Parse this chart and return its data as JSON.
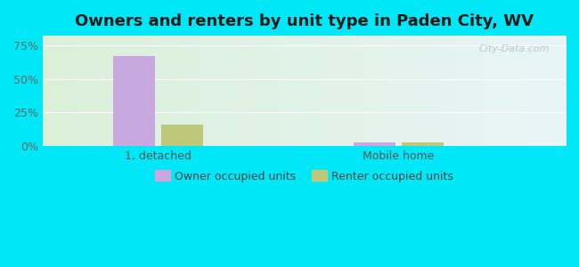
{
  "title": "Owners and renters by unit type in Paden City, WV",
  "categories": [
    "1, detached",
    "Mobile home"
  ],
  "owner_values": [
    67.0,
    2.8
  ],
  "renter_values": [
    16.0,
    2.8
  ],
  "owner_color": "#c9a8e0",
  "renter_color": "#bec87a",
  "yticks": [
    0,
    25,
    50,
    75
  ],
  "ytick_labels": [
    "0%",
    "25%",
    "50%",
    "75%"
  ],
  "ylim": [
    0,
    82
  ],
  "bar_width": 0.08,
  "group_positions": [
    0.22,
    0.68
  ],
  "xlim": [
    0,
    1
  ],
  "background_color": "#00e8f8",
  "watermark": "City-Data.com",
  "legend_owner": "Owner occupied units",
  "legend_renter": "Renter occupied units",
  "title_fontsize": 13,
  "tick_fontsize": 9,
  "cat_fontsize": 9
}
